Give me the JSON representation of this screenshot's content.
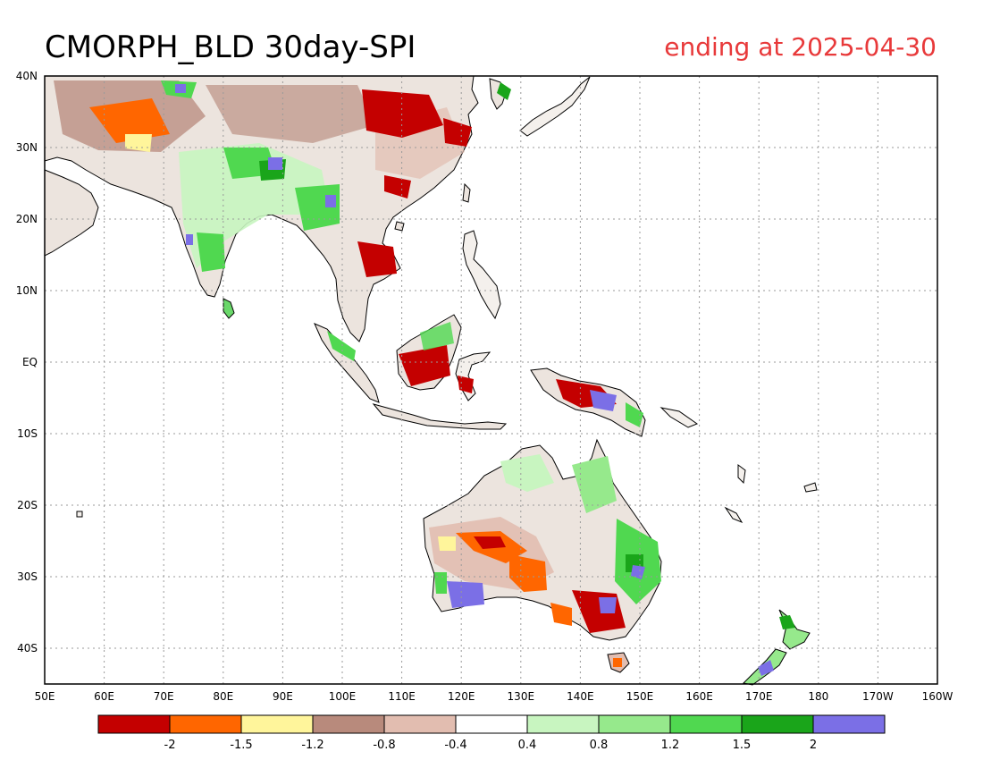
{
  "title": "CMORPH_BLD 30day-SPI",
  "subtitle": "ending at 2025-04-30",
  "colors": {
    "title": "#000000",
    "subtitle": "#e8393a",
    "land_neutral": "#ffffff",
    "coast": "#000000",
    "grid": "#9a9a9a"
  },
  "map": {
    "lon_range": [
      50,
      200
    ],
    "lat_range": [
      -45,
      40
    ],
    "x_ticks": [
      "50E",
      "60E",
      "70E",
      "80E",
      "90E",
      "100E",
      "110E",
      "120E",
      "130E",
      "140E",
      "150E",
      "160E",
      "170E",
      "180",
      "170W",
      "160W"
    ],
    "y_ticks": [
      "40N",
      "30N",
      "20N",
      "10N",
      "EQ",
      "10S",
      "20S",
      "30S",
      "40S"
    ]
  },
  "legend": {
    "colors": [
      "#c40000",
      "#ff6600",
      "#fff59b",
      "#b88a7c",
      "#e2bdb0",
      "#ffffff",
      "#c8f5c0",
      "#96e98c",
      "#50d850",
      "#1aa51a",
      "#7b6fe6"
    ],
    "labels": [
      "-2",
      "-1.5",
      "-1.2",
      "-0.8",
      "-0.4",
      "0.4",
      "0.8",
      "1.2",
      "1.5",
      "2"
    ]
  }
}
